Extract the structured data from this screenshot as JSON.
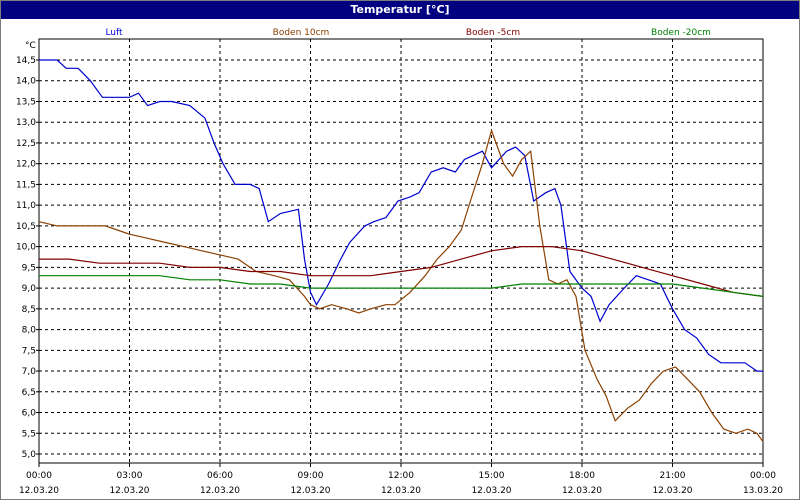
{
  "window_title": "Temperatur [°C]",
  "colors": {
    "titlebar": "#000080",
    "grid": "#000000",
    "Luft": "#0000d0",
    "Boden 10cm": "#8b4000",
    "Boden -5cm": "#800000",
    "Boden -20cm": "#008000"
  },
  "chart_data": {
    "type": "line",
    "ylabel": "°C",
    "ylim": [
      5.0,
      14.5
    ],
    "y_ticks": [
      "14,5",
      "14,0",
      "13,5",
      "13,0",
      "12,5",
      "12,0",
      "11,5",
      "11,0",
      "10,5",
      "10,0",
      "9,5",
      "9,0",
      "8,5",
      "8,0",
      "7,5",
      "7,0",
      "6,5",
      "6,0",
      "5,5",
      "5,0"
    ],
    "xlim_hours": [
      0,
      24
    ],
    "x_ticks": [
      {
        "time": "00:00",
        "date": "12.03.20"
      },
      {
        "time": "03:00",
        "date": "12.03.20"
      },
      {
        "time": "06:00",
        "date": "12.03.20"
      },
      {
        "time": "09:00",
        "date": "12.03.20"
      },
      {
        "time": "12:00",
        "date": "12.03.20"
      },
      {
        "time": "15:00",
        "date": "12.03.20"
      },
      {
        "time": "18:00",
        "date": "12.03.20"
      },
      {
        "time": "21:00",
        "date": "12.03.20"
      },
      {
        "time": "00:00",
        "date": "13.03.20"
      }
    ],
    "grid": true,
    "legend_position": "top",
    "series": [
      {
        "name": "Luft",
        "points": [
          [
            0,
            14.5
          ],
          [
            0.6,
            14.5
          ],
          [
            0.9,
            14.3
          ],
          [
            1.3,
            14.3
          ],
          [
            1.7,
            14.0
          ],
          [
            2.1,
            13.6
          ],
          [
            2.5,
            13.6
          ],
          [
            3.0,
            13.6
          ],
          [
            3.3,
            13.7
          ],
          [
            3.6,
            13.4
          ],
          [
            4.0,
            13.5
          ],
          [
            4.4,
            13.5
          ],
          [
            5.0,
            13.4
          ],
          [
            5.5,
            13.1
          ],
          [
            5.8,
            12.5
          ],
          [
            6.1,
            12.0
          ],
          [
            6.5,
            11.5
          ],
          [
            7.0,
            11.5
          ],
          [
            7.3,
            11.4
          ],
          [
            7.6,
            10.6
          ],
          [
            8.0,
            10.8
          ],
          [
            8.6,
            10.9
          ],
          [
            8.8,
            9.7
          ],
          [
            9.0,
            8.9
          ],
          [
            9.2,
            8.6
          ],
          [
            9.6,
            9.1
          ],
          [
            10.0,
            9.7
          ],
          [
            10.3,
            10.1
          ],
          [
            10.8,
            10.5
          ],
          [
            11.1,
            10.6
          ],
          [
            11.5,
            10.7
          ],
          [
            11.9,
            11.1
          ],
          [
            12.3,
            11.2
          ],
          [
            12.6,
            11.3
          ],
          [
            13.0,
            11.8
          ],
          [
            13.4,
            11.9
          ],
          [
            13.8,
            11.8
          ],
          [
            14.1,
            12.1
          ],
          [
            14.4,
            12.2
          ],
          [
            14.7,
            12.3
          ],
          [
            15.0,
            11.9
          ],
          [
            15.5,
            12.3
          ],
          [
            15.8,
            12.4
          ],
          [
            16.1,
            12.2
          ],
          [
            16.4,
            11.1
          ],
          [
            16.8,
            11.3
          ],
          [
            17.1,
            11.4
          ],
          [
            17.3,
            11.0
          ],
          [
            17.6,
            9.4
          ],
          [
            18.0,
            9.0
          ],
          [
            18.3,
            8.8
          ],
          [
            18.6,
            8.2
          ],
          [
            18.9,
            8.6
          ],
          [
            19.4,
            9.0
          ],
          [
            19.8,
            9.3
          ],
          [
            20.2,
            9.2
          ],
          [
            20.6,
            9.1
          ],
          [
            21.0,
            8.5
          ],
          [
            21.4,
            8.0
          ],
          [
            21.8,
            7.8
          ],
          [
            22.2,
            7.4
          ],
          [
            22.6,
            7.2
          ],
          [
            23.0,
            7.2
          ],
          [
            23.4,
            7.2
          ],
          [
            23.8,
            7.0
          ],
          [
            24.0,
            7.0
          ]
        ]
      },
      {
        "name": "Boden 10cm",
        "points": [
          [
            0,
            10.6
          ],
          [
            0.6,
            10.5
          ],
          [
            1.5,
            10.5
          ],
          [
            2.2,
            10.5
          ],
          [
            3.0,
            10.3
          ],
          [
            3.6,
            10.2
          ],
          [
            4.2,
            10.1
          ],
          [
            4.8,
            10.0
          ],
          [
            5.4,
            9.9
          ],
          [
            6.0,
            9.8
          ],
          [
            6.6,
            9.7
          ],
          [
            7.2,
            9.4
          ],
          [
            7.8,
            9.3
          ],
          [
            8.3,
            9.2
          ],
          [
            8.8,
            8.8
          ],
          [
            9.0,
            8.6
          ],
          [
            9.3,
            8.5
          ],
          [
            9.7,
            8.6
          ],
          [
            10.2,
            8.5
          ],
          [
            10.6,
            8.4
          ],
          [
            11.0,
            8.5
          ],
          [
            11.5,
            8.6
          ],
          [
            11.8,
            8.6
          ],
          [
            12.3,
            8.9
          ],
          [
            12.8,
            9.3
          ],
          [
            13.2,
            9.7
          ],
          [
            13.6,
            10.0
          ],
          [
            14.0,
            10.4
          ],
          [
            14.3,
            11.1
          ],
          [
            14.7,
            12.0
          ],
          [
            15.0,
            12.8
          ],
          [
            15.4,
            12.0
          ],
          [
            15.7,
            11.7
          ],
          [
            16.0,
            12.1
          ],
          [
            16.3,
            12.3
          ],
          [
            16.6,
            10.5
          ],
          [
            16.9,
            9.2
          ],
          [
            17.2,
            9.1
          ],
          [
            17.5,
            9.2
          ],
          [
            17.8,
            8.8
          ],
          [
            18.1,
            7.5
          ],
          [
            18.5,
            6.8
          ],
          [
            18.8,
            6.4
          ],
          [
            19.1,
            5.8
          ],
          [
            19.5,
            6.1
          ],
          [
            19.9,
            6.3
          ],
          [
            20.3,
            6.7
          ],
          [
            20.7,
            7.0
          ],
          [
            21.1,
            7.1
          ],
          [
            21.5,
            6.8
          ],
          [
            21.9,
            6.5
          ],
          [
            22.3,
            6.0
          ],
          [
            22.7,
            5.6
          ],
          [
            23.1,
            5.5
          ],
          [
            23.5,
            5.6
          ],
          [
            23.8,
            5.5
          ],
          [
            24.0,
            5.3
          ]
        ]
      },
      {
        "name": "Boden -5cm",
        "points": [
          [
            0,
            9.7
          ],
          [
            1.0,
            9.7
          ],
          [
            2.0,
            9.6
          ],
          [
            3.0,
            9.6
          ],
          [
            4.0,
            9.6
          ],
          [
            5.0,
            9.5
          ],
          [
            6.0,
            9.5
          ],
          [
            7.0,
            9.4
          ],
          [
            8.0,
            9.4
          ],
          [
            9.0,
            9.3
          ],
          [
            10.0,
            9.3
          ],
          [
            11.0,
            9.3
          ],
          [
            12.0,
            9.4
          ],
          [
            13.0,
            9.5
          ],
          [
            14.0,
            9.7
          ],
          [
            15.0,
            9.9
          ],
          [
            16.0,
            10.0
          ],
          [
            17.0,
            10.0
          ],
          [
            18.0,
            9.9
          ],
          [
            19.0,
            9.7
          ],
          [
            20.0,
            9.5
          ],
          [
            21.0,
            9.3
          ],
          [
            22.0,
            9.1
          ],
          [
            23.0,
            8.9
          ],
          [
            24.0,
            8.8
          ]
        ]
      },
      {
        "name": "Boden -20cm",
        "points": [
          [
            0,
            9.3
          ],
          [
            1.0,
            9.3
          ],
          [
            2.0,
            9.3
          ],
          [
            3.0,
            9.3
          ],
          [
            4.0,
            9.3
          ],
          [
            5.0,
            9.2
          ],
          [
            6.0,
            9.2
          ],
          [
            7.0,
            9.1
          ],
          [
            8.0,
            9.1
          ],
          [
            9.0,
            9.0
          ],
          [
            10.0,
            9.0
          ],
          [
            11.0,
            9.0
          ],
          [
            12.0,
            9.0
          ],
          [
            13.0,
            9.0
          ],
          [
            14.0,
            9.0
          ],
          [
            15.0,
            9.0
          ],
          [
            16.0,
            9.1
          ],
          [
            17.0,
            9.1
          ],
          [
            18.0,
            9.1
          ],
          [
            19.0,
            9.1
          ],
          [
            20.0,
            9.1
          ],
          [
            21.0,
            9.1
          ],
          [
            22.0,
            9.0
          ],
          [
            23.0,
            8.9
          ],
          [
            24.0,
            8.8
          ]
        ]
      }
    ]
  }
}
